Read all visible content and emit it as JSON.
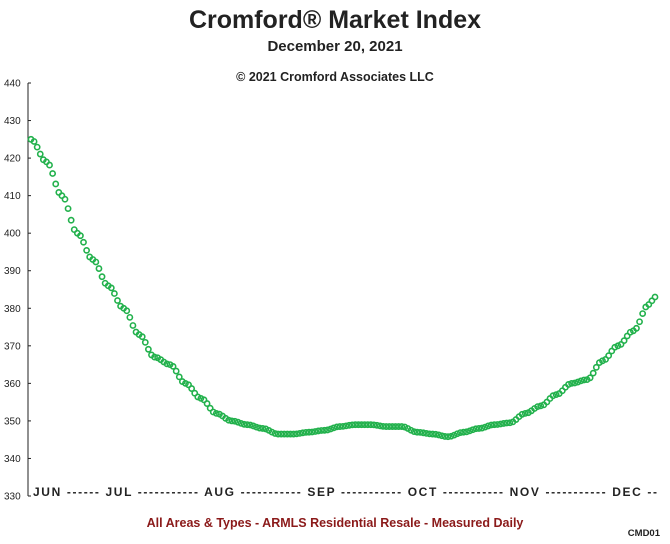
{
  "chart_data": {
    "type": "line",
    "title": "Cromford® Market Index",
    "subtitle": "December 20, 2021",
    "copyright": "© 2021 Cromford Associates LLC",
    "footer": "All Areas & Types - ARMLS Residential Resale - Measured Daily",
    "code": "CMD01",
    "ylim": [
      330,
      440
    ],
    "yticks": [
      330,
      340,
      350,
      360,
      370,
      380,
      390,
      400,
      410,
      420,
      430,
      440
    ],
    "x_axis_label_text": "JUN ------ JUL ----------- AUG ----------- SEP ----------- OCT ----------- NOV ----------- DEC --",
    "months": [
      "JUN",
      "JUL",
      "AUG",
      "SEP",
      "OCT",
      "NOV",
      "DEC"
    ],
    "month_start_day": [
      0,
      30,
      61,
      92,
      122,
      153,
      183
    ],
    "series_color": "#22b14c",
    "grid": false,
    "series": [
      {
        "name": "",
        "day": [
          0,
          5,
          10,
          15,
          20,
          25,
          30,
          35,
          40,
          45,
          50,
          55,
          60,
          65,
          70,
          75,
          80,
          85,
          90,
          95,
          100,
          105,
          110,
          115,
          120,
          125,
          130,
          135,
          140,
          145,
          150,
          155,
          160,
          165,
          170,
          175,
          180,
          185,
          190,
          195,
          200,
          202
        ],
        "values": [
          425,
          419,
          410,
          400,
          393,
          386,
          380,
          373,
          367,
          365,
          360,
          356,
          352,
          350,
          349,
          348,
          346.5,
          346.5,
          347,
          347.5,
          348.5,
          349,
          349,
          348.5,
          348.5,
          347,
          346.5,
          345.8,
          347,
          348,
          349,
          349.5,
          352,
          354,
          357,
          360,
          361,
          366,
          370,
          374,
          381,
          383
        ]
      }
    ]
  }
}
